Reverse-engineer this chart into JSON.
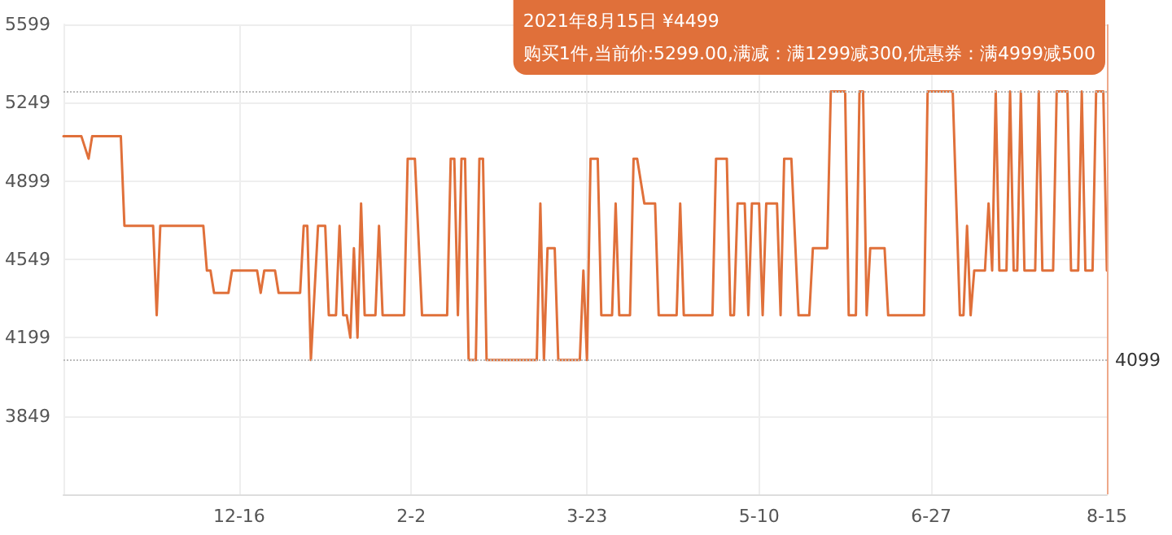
{
  "chart_data": {
    "type": "line",
    "x": [
      "2020-10-28",
      "2020-11-02",
      "2020-11-04",
      "2020-11-05",
      "2020-11-13",
      "2020-11-14",
      "2020-11-22",
      "2020-11-23",
      "2020-11-24",
      "2020-12-06",
      "2020-12-07",
      "2020-12-08",
      "2020-12-09",
      "2020-12-13",
      "2020-12-14",
      "2020-12-21",
      "2020-12-22",
      "2020-12-23",
      "2020-12-26",
      "2020-12-27",
      "2021-01-02",
      "2021-01-03",
      "2021-01-04",
      "2021-01-05",
      "2021-01-07",
      "2021-01-09",
      "2021-01-10",
      "2021-01-12",
      "2021-01-13",
      "2021-01-14",
      "2021-01-15",
      "2021-01-16",
      "2021-01-17",
      "2021-01-18",
      "2021-01-19",
      "2021-01-20",
      "2021-01-23",
      "2021-01-24",
      "2021-01-25",
      "2021-01-31",
      "2021-02-01",
      "2021-02-03",
      "2021-02-05",
      "2021-02-12",
      "2021-02-13",
      "2021-02-14",
      "2021-02-15",
      "2021-02-16",
      "2021-02-17",
      "2021-02-18",
      "2021-02-20",
      "2021-02-21",
      "2021-02-22",
      "2021-02-23",
      "2021-03-09",
      "2021-03-10",
      "2021-03-11",
      "2021-03-12",
      "2021-03-14",
      "2021-03-15",
      "2021-03-21",
      "2021-03-22",
      "2021-03-23",
      "2021-03-24",
      "2021-03-26",
      "2021-03-27",
      "2021-03-30",
      "2021-03-31",
      "2021-04-01",
      "2021-04-04",
      "2021-04-05",
      "2021-04-06",
      "2021-04-08",
      "2021-04-11",
      "2021-04-12",
      "2021-04-17",
      "2021-04-18",
      "2021-04-19",
      "2021-04-27",
      "2021-04-28",
      "2021-05-01",
      "2021-05-02",
      "2021-05-03",
      "2021-05-04",
      "2021-05-06",
      "2021-05-07",
      "2021-05-08",
      "2021-05-10",
      "2021-05-11",
      "2021-05-12",
      "2021-05-15",
      "2021-05-16",
      "2021-05-17",
      "2021-05-19",
      "2021-05-21",
      "2021-05-24",
      "2021-05-25",
      "2021-05-29",
      "2021-05-30",
      "2021-06-03",
      "2021-06-04",
      "2021-06-06",
      "2021-06-07",
      "2021-06-08",
      "2021-06-09",
      "2021-06-10",
      "2021-06-14",
      "2021-06-15",
      "2021-06-25",
      "2021-06-26",
      "2021-07-03",
      "2021-07-05",
      "2021-07-06",
      "2021-07-07",
      "2021-07-08",
      "2021-07-09",
      "2021-07-12",
      "2021-07-13",
      "2021-07-14",
      "2021-07-15",
      "2021-07-16",
      "2021-07-18",
      "2021-07-19",
      "2021-07-20",
      "2021-07-21",
      "2021-07-22",
      "2021-07-23",
      "2021-07-26",
      "2021-07-27",
      "2021-07-28",
      "2021-07-31",
      "2021-08-01",
      "2021-08-04",
      "2021-08-05",
      "2021-08-07",
      "2021-08-08",
      "2021-08-09",
      "2021-08-11",
      "2021-08-12",
      "2021-08-14",
      "2021-08-15"
    ],
    "series": [
      {
        "color": "#e0703a",
        "values": [
          5099,
          5099,
          4999,
          5099,
          5099,
          4699,
          4699,
          4299,
          4699,
          4699,
          4499,
          4499,
          4399,
          4399,
          4499,
          4499,
          4399,
          4499,
          4499,
          4399,
          4399,
          4699,
          4699,
          4099,
          4699,
          4699,
          4299,
          4299,
          4699,
          4299,
          4299,
          4199,
          4599,
          4199,
          4799,
          4299,
          4299,
          4699,
          4299,
          4299,
          4999,
          4999,
          4299,
          4299,
          4999,
          4999,
          4299,
          4999,
          4999,
          4099,
          4099,
          4999,
          4999,
          4099,
          4099,
          4799,
          4099,
          4599,
          4599,
          4099,
          4099,
          4499,
          4099,
          4999,
          4999,
          4299,
          4299,
          4799,
          4299,
          4299,
          4999,
          4999,
          4799,
          4799,
          4299,
          4299,
          4799,
          4299,
          4299,
          4999,
          4999,
          4299,
          4299,
          4799,
          4799,
          4299,
          4799,
          4799,
          4299,
          4799,
          4799,
          4299,
          4999,
          4999,
          4299,
          4299,
          4599,
          4599,
          5299,
          5299,
          4299,
          4299,
          5299,
          5299,
          4299,
          4599,
          4599,
          4299,
          4299,
          5299,
          5299,
          4299,
          4299,
          4699,
          4299,
          4499,
          4499,
          4799,
          4499,
          5299,
          4499,
          4499,
          5299,
          4499,
          4499,
          5299,
          4499,
          4499,
          5299,
          4499,
          4499,
          5299,
          5299,
          4499,
          4499,
          5299,
          4499,
          4499,
          5299,
          5299,
          4499
        ]
      }
    ],
    "xlim": [
      "2020-10-28",
      "2021-08-15"
    ],
    "xticks": [
      {
        "value": "2020-12-16",
        "label": "12-16"
      },
      {
        "value": "2021-02-02",
        "label": "2-2"
      },
      {
        "value": "2021-03-23",
        "label": "3-23"
      },
      {
        "value": "2021-05-10",
        "label": "5-10"
      },
      {
        "value": "2021-06-27",
        "label": "6-27"
      },
      {
        "value": "2021-08-15",
        "label": "8-15"
      }
    ],
    "ylim": [
      3499,
      5599
    ],
    "yticks": [
      3849,
      4199,
      4549,
      4899,
      5249,
      5599
    ],
    "grid": true,
    "marker": "none",
    "line_style": "solid",
    "ref_lines": [
      {
        "axis": "y",
        "value": 5299,
        "label": null,
        "color": "#bbbbbb",
        "line_style": "dotted"
      },
      {
        "axis": "y",
        "value": 4099,
        "label": "4099",
        "color": "#bbbbbb",
        "line_style": "dotted"
      },
      {
        "axis": "x",
        "value": "2021-08-15",
        "label": null,
        "color": "#eea88a",
        "line_style": "solid"
      }
    ],
    "annotations": [
      "2021年8月15日 ¥4499\n购买1件,当前价:5299.00,满减：满1299减300,优惠券：满4999减500"
    ]
  }
}
